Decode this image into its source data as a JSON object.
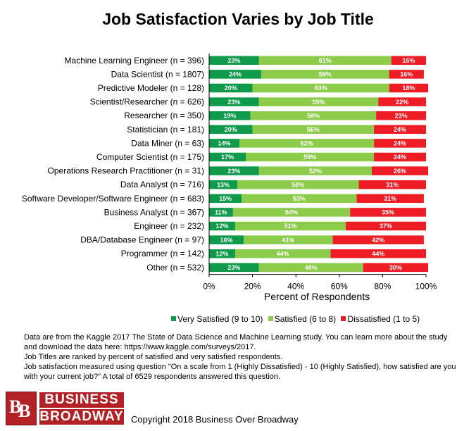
{
  "chart_data": {
    "type": "bar",
    "stacked": true,
    "orientation": "horizontal",
    "percent_stacked": true,
    "title": "Job Satisfaction Varies by Job Title",
    "xlabel": "Percent of Respondents",
    "ylabel": "",
    "xlim": [
      0,
      100
    ],
    "x_ticks": [
      "0%",
      "20%",
      "40%",
      "60%",
      "80%",
      "100%"
    ],
    "grid": false,
    "legend_position": "bottom",
    "categories": [
      "Machine Learning Engineer (n = 396)",
      "Data Scientist (n = 1807)",
      "Predictive Modeler (n = 128)",
      "Scientist/Researcher (n = 626)",
      "Researcher (n = 350)",
      "Statistician (n = 181)",
      "Data Miner (n = 63)",
      "Computer Scientist (n = 175)",
      "Operations Research Practitioner (n = 31)",
      "Data Analyst (n = 716)",
      "Software Developer/Software Engineer (n = 683)",
      "Business Analyst (n = 367)",
      "Engineer (n = 232)",
      "DBA/Database Engineer (n = 97)",
      "Programmer (n = 142)",
      "Other (n = 532)"
    ],
    "series": [
      {
        "name": "Very Satisfied (9 to 10)",
        "color": "#0e9a4a",
        "values": [
          23,
          24,
          20,
          23,
          19,
          20,
          14,
          17,
          23,
          13,
          15,
          11,
          12,
          16,
          12,
          23
        ],
        "labels": [
          "23%",
          "24%",
          "20%",
          "23%",
          "19%",
          "20%",
          "14%",
          "17%",
          "23%",
          "13%",
          "15%",
          "11%",
          "12%",
          "16%",
          "12%",
          "23%"
        ]
      },
      {
        "name": "Satisfied (6 to 8)",
        "color": "#8ccc4a",
        "values": [
          61,
          59,
          63,
          55,
          58,
          56,
          62,
          59,
          52,
          56,
          53,
          54,
          51,
          41,
          44,
          48
        ],
        "labels": [
          "61%",
          "59%",
          "63%",
          "55%",
          "58%",
          "56%",
          "62%",
          "59%",
          "52%",
          "56%",
          "53%",
          "54%",
          "51%",
          "41%",
          "44%",
          "48%"
        ]
      },
      {
        "name": "Dissatisfied (1 to 5)",
        "color": "#ee1c24",
        "values": [
          16,
          16,
          18,
          22,
          23,
          24,
          24,
          24,
          26,
          31,
          31,
          35,
          37,
          42,
          44,
          30
        ],
        "labels": [
          "16%",
          "16%",
          "18%",
          "22%",
          "23%",
          "24%",
          "24%",
          "24%",
          "26%",
          "31%",
          "31%",
          "35%",
          "37%",
          "42%",
          "44%",
          "30%"
        ]
      }
    ]
  },
  "notes": [
    "Data are from the Kaggle 2017 The State of Data Science and Machine Learning study. You can learn more about the study and download the data here:  https://www.kaggle.com/surveys/2017.",
    "Job Titles are ranked by percent of satisfied and very satisfied respondents.",
    "Job satisfaction measured using question \"On a scale from 1 (Highly Dissatisfied) - 10 (Highly Satisfied), how satisfied are you with your current job?\" A total of 6529 respondents answered this question."
  ],
  "logo": {
    "mark": "BB",
    "mark_first": "B",
    "mark_second": "B",
    "line1": "BUSINESS",
    "line2": "BROADWAY"
  },
  "copyright": "Copyright 2018 Business Over Broadway"
}
